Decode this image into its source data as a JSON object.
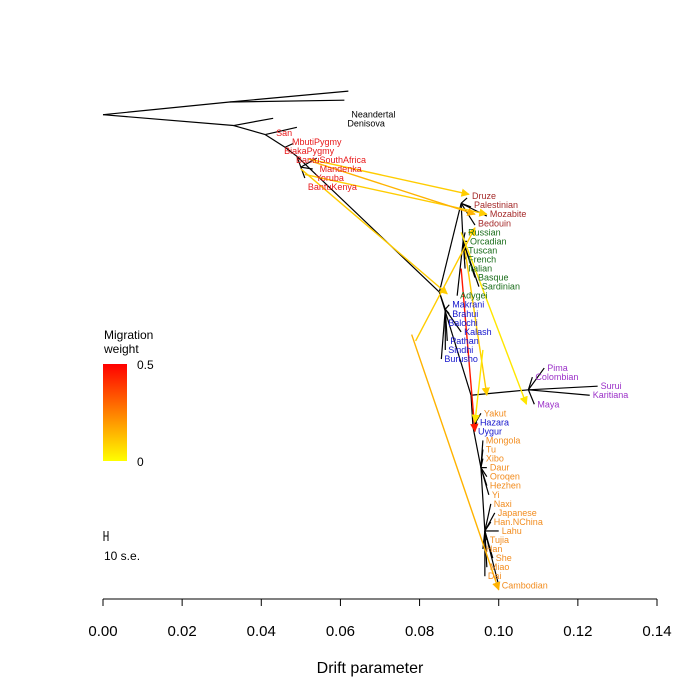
{
  "chart_data": {
    "type": "tree",
    "xlabel": "Drift parameter",
    "xlim": [
      0.0,
      0.14
    ],
    "x_ticks": [
      "0.00",
      "0.02",
      "0.04",
      "0.06",
      "0.08",
      "0.10",
      "0.12",
      "0.14"
    ],
    "legend": {
      "title_line1": "Migration",
      "title_line2": "weight",
      "max_label": "0.5",
      "min_label": "0",
      "gradient_top": "#ff0000",
      "gradient_bottom": "#ffff00"
    },
    "scale_bar_label": "10 s.e.",
    "group_colors": {
      "outgroup": "#000000",
      "africa": "#e8191b",
      "middle_east": "#a52a2a",
      "europe": "#1c6e1c",
      "central_south_asia": "#1414cc",
      "america": "#9b30c8",
      "east_asia": "#f28c1e"
    },
    "leaves": [
      {
        "name": "Neandertal",
        "group": "outgroup",
        "drift": 0.062,
        "order": 0
      },
      {
        "name": "Denisova",
        "group": "outgroup",
        "drift": 0.061,
        "order": 1
      },
      {
        "name": "San",
        "group": "africa",
        "drift": 0.043,
        "order": 2
      },
      {
        "name": "MbutiPygmy",
        "group": "africa",
        "drift": 0.047,
        "order": 3
      },
      {
        "name": "BiakaPygmy",
        "group": "africa",
        "drift": 0.045,
        "order": 4
      },
      {
        "name": "BantuSouthAfrica",
        "group": "africa",
        "drift": 0.048,
        "order": 5
      },
      {
        "name": "Mandenka",
        "group": "africa",
        "drift": 0.054,
        "order": 6
      },
      {
        "name": "Yoruba",
        "group": "africa",
        "drift": 0.053,
        "order": 7
      },
      {
        "name": "BantuKenya",
        "group": "africa",
        "drift": 0.051,
        "order": 8
      },
      {
        "name": "Druze",
        "group": "middle_east",
        "drift": 0.0925,
        "order": 9
      },
      {
        "name": "Palestinian",
        "group": "middle_east",
        "drift": 0.093,
        "order": 10
      },
      {
        "name": "Mozabite",
        "group": "middle_east",
        "drift": 0.097,
        "order": 11
      },
      {
        "name": "Bedouin",
        "group": "middle_east",
        "drift": 0.094,
        "order": 12
      },
      {
        "name": "Russian",
        "group": "europe",
        "drift": 0.0915,
        "order": 13
      },
      {
        "name": "Orcadian",
        "group": "europe",
        "drift": 0.092,
        "order": 14
      },
      {
        "name": "Tuscan",
        "group": "europe",
        "drift": 0.0915,
        "order": 15
      },
      {
        "name": "French",
        "group": "europe",
        "drift": 0.0915,
        "order": 16
      },
      {
        "name": "Italian",
        "group": "europe",
        "drift": 0.0915,
        "order": 17
      },
      {
        "name": "Basque",
        "group": "europe",
        "drift": 0.094,
        "order": 18
      },
      {
        "name": "Sardinian",
        "group": "europe",
        "drift": 0.095,
        "order": 19
      },
      {
        "name": "Adygei",
        "group": "europe",
        "drift": 0.0895,
        "order": 20
      },
      {
        "name": "Makrani",
        "group": "central_south_asia",
        "drift": 0.0875,
        "order": 21
      },
      {
        "name": "Brahui",
        "group": "central_south_asia",
        "drift": 0.0875,
        "order": 22
      },
      {
        "name": "Balochi",
        "group": "central_south_asia",
        "drift": 0.0865,
        "order": 23
      },
      {
        "name": "Kalash",
        "group": "central_south_asia",
        "drift": 0.0905,
        "order": 24
      },
      {
        "name": "Pathan",
        "group": "central_south_asia",
        "drift": 0.087,
        "order": 25
      },
      {
        "name": "Sindhi",
        "group": "central_south_asia",
        "drift": 0.0865,
        "order": 26
      },
      {
        "name": "Burusho",
        "group": "central_south_asia",
        "drift": 0.0855,
        "order": 27
      },
      {
        "name": "Pima",
        "group": "america",
        "drift": 0.1115,
        "order": 28
      },
      {
        "name": "Colombian",
        "group": "america",
        "drift": 0.1085,
        "order": 29
      },
      {
        "name": "Surui",
        "group": "america",
        "drift": 0.125,
        "order": 30
      },
      {
        "name": "Karitiana",
        "group": "america",
        "drift": 0.123,
        "order": 31
      },
      {
        "name": "Maya",
        "group": "america",
        "drift": 0.109,
        "order": 32
      },
      {
        "name": "Yakut",
        "group": "east_asia",
        "drift": 0.0955,
        "order": 33
      },
      {
        "name": "Hazara",
        "group": "central_south_asia",
        "drift": 0.0945,
        "order": 34
      },
      {
        "name": "Uygur",
        "group": "central_south_asia",
        "drift": 0.094,
        "order": 35
      },
      {
        "name": "Mongola",
        "group": "east_asia",
        "drift": 0.096,
        "order": 36
      },
      {
        "name": "Tu",
        "group": "east_asia",
        "drift": 0.096,
        "order": 37
      },
      {
        "name": "Xibo",
        "group": "east_asia",
        "drift": 0.096,
        "order": 38
      },
      {
        "name": "Daur",
        "group": "east_asia",
        "drift": 0.097,
        "order": 39
      },
      {
        "name": "Oroqen",
        "group": "east_asia",
        "drift": 0.097,
        "order": 40
      },
      {
        "name": "Hezhen",
        "group": "east_asia",
        "drift": 0.097,
        "order": 41
      },
      {
        "name": "Yi",
        "group": "east_asia",
        "drift": 0.0975,
        "order": 42
      },
      {
        "name": "Naxi",
        "group": "east_asia",
        "drift": 0.098,
        "order": 43
      },
      {
        "name": "Japanese",
        "group": "east_asia",
        "drift": 0.099,
        "order": 44
      },
      {
        "name": "Han.NChina",
        "group": "east_asia",
        "drift": 0.098,
        "order": 45
      },
      {
        "name": "Lahu",
        "group": "east_asia",
        "drift": 0.1,
        "order": 46
      },
      {
        "name": "Tujia",
        "group": "east_asia",
        "drift": 0.097,
        "order": 47
      },
      {
        "name": "Han",
        "group": "east_asia",
        "drift": 0.096,
        "order": 48
      },
      {
        "name": "She",
        "group": "east_asia",
        "drift": 0.0985,
        "order": 49
      },
      {
        "name": "Miao",
        "group": "east_asia",
        "drift": 0.097,
        "order": 50
      },
      {
        "name": "Dai",
        "group": "east_asia",
        "drift": 0.0965,
        "order": 51
      },
      {
        "name": "Cambodian",
        "group": "east_asia",
        "drift": 0.1,
        "order": 52
      }
    ],
    "tree_edges": [
      [
        0.0,
        0,
        0.032,
        -1.4
      ],
      [
        0.032,
        -1.4,
        0.062,
        -2.6
      ],
      [
        0.032,
        -1.4,
        0.061,
        -1.6
      ],
      [
        0.0,
        0,
        0.033,
        1.2
      ],
      [
        0.033,
        1.2,
        0.043,
        0.4
      ],
      [
        0.033,
        1.2,
        0.041,
        2.2
      ],
      [
        0.041,
        2.2,
        0.049,
        1.4
      ],
      [
        0.041,
        2.2,
        0.046,
        3.6
      ],
      [
        0.046,
        3.6,
        0.048,
        3.2
      ],
      [
        0.046,
        3.6,
        0.049,
        4.6
      ],
      [
        0.049,
        4.6,
        0.05,
        5.8
      ],
      [
        0.05,
        5.8,
        0.054,
        4.8
      ],
      [
        0.05,
        5.8,
        0.053,
        6.0
      ],
      [
        0.05,
        5.8,
        0.051,
        7.0
      ],
      [
        0.049,
        4.6,
        0.085,
        19.6
      ],
      [
        0.085,
        19.6,
        0.0905,
        9.8
      ],
      [
        0.0905,
        9.8,
        0.092,
        9.2
      ],
      [
        0.0905,
        9.8,
        0.093,
        10.2
      ],
      [
        0.0905,
        9.8,
        0.097,
        11.2
      ],
      [
        0.0905,
        9.8,
        0.094,
        12.2
      ],
      [
        0.0905,
        9.8,
        0.091,
        14.0
      ],
      [
        0.091,
        14.0,
        0.0915,
        13.0
      ],
      [
        0.091,
        14.0,
        0.092,
        14.0
      ],
      [
        0.091,
        14.0,
        0.0915,
        15.0
      ],
      [
        0.091,
        14.0,
        0.0915,
        16.0
      ],
      [
        0.091,
        14.0,
        0.0915,
        17.0
      ],
      [
        0.091,
        14.0,
        0.094,
        18.0
      ],
      [
        0.091,
        14.0,
        0.095,
        19.0
      ],
      [
        0.091,
        14.0,
        0.0895,
        20.0
      ],
      [
        0.085,
        19.6,
        0.0865,
        21.5
      ],
      [
        0.0865,
        21.5,
        0.0875,
        21.0
      ],
      [
        0.0865,
        21.5,
        0.0875,
        22.0
      ],
      [
        0.0865,
        21.5,
        0.0865,
        23.0
      ],
      [
        0.0865,
        21.5,
        0.0905,
        24.0
      ],
      [
        0.0865,
        21.5,
        0.087,
        25.0
      ],
      [
        0.0865,
        21.5,
        0.0865,
        26.0
      ],
      [
        0.0865,
        21.5,
        0.0855,
        27.0
      ],
      [
        0.085,
        19.6,
        0.093,
        31.0
      ],
      [
        0.093,
        31.0,
        0.1075,
        30.4
      ],
      [
        0.1075,
        30.4,
        0.1115,
        28.0
      ],
      [
        0.1075,
        30.4,
        0.1085,
        29.0
      ],
      [
        0.1075,
        30.4,
        0.125,
        30.0
      ],
      [
        0.1075,
        30.4,
        0.123,
        31.0
      ],
      [
        0.1075,
        30.4,
        0.109,
        32.0
      ],
      [
        0.093,
        31.0,
        0.0935,
        34.5
      ],
      [
        0.0935,
        34.5,
        0.0955,
        33.0
      ],
      [
        0.0935,
        34.5,
        0.0945,
        34.0
      ],
      [
        0.0935,
        34.5,
        0.094,
        35.0
      ],
      [
        0.0935,
        34.5,
        0.0955,
        39.0
      ],
      [
        0.0955,
        39.0,
        0.096,
        36.0
      ],
      [
        0.0955,
        39.0,
        0.096,
        37.0
      ],
      [
        0.0955,
        39.0,
        0.096,
        38.0
      ],
      [
        0.0955,
        39.0,
        0.097,
        39.0
      ],
      [
        0.0955,
        39.0,
        0.097,
        40.0
      ],
      [
        0.0955,
        39.0,
        0.097,
        41.0
      ],
      [
        0.0955,
        39.0,
        0.0975,
        42.0
      ],
      [
        0.0955,
        39.0,
        0.0965,
        46.0
      ],
      [
        0.0965,
        46.0,
        0.098,
        43.0
      ],
      [
        0.0965,
        46.0,
        0.099,
        44.0
      ],
      [
        0.0965,
        46.0,
        0.098,
        45.0
      ],
      [
        0.0965,
        46.0,
        0.1,
        46.0
      ],
      [
        0.0965,
        46.0,
        0.097,
        47.0
      ],
      [
        0.0965,
        46.0,
        0.096,
        48.0
      ],
      [
        0.0965,
        46.0,
        0.0985,
        49.0
      ],
      [
        0.0965,
        46.0,
        0.097,
        50.0
      ],
      [
        0.0965,
        46.0,
        0.0965,
        51.0
      ],
      [
        0.0965,
        46.0,
        0.1,
        52.0
      ]
    ],
    "migrations": [
      {
        "from": [
          0.052,
          4.9
        ],
        "to": [
          0.0925,
          8.8
        ],
        "weight": 0.1
      },
      {
        "from": [
          0.051,
          6.6
        ],
        "to": [
          0.097,
          11.0
        ],
        "weight": 0.1
      },
      {
        "from": [
          0.053,
          5.2
        ],
        "to": [
          0.094,
          11.0
        ],
        "weight": 0.15
      },
      {
        "from": [
          0.05,
          6.0
        ],
        "to": [
          0.087,
          19.8
        ],
        "weight": 0.1
      },
      {
        "from": [
          0.0905,
          13.0
        ],
        "to": [
          0.107,
          32.0
        ],
        "weight": 0.05
      },
      {
        "from": [
          0.0915,
          15.0
        ],
        "to": [
          0.097,
          31.0
        ],
        "weight": 0.1
      },
      {
        "from": [
          0.0905,
          17.0
        ],
        "to": [
          0.094,
          35.0
        ],
        "weight": 0.45
      },
      {
        "from": [
          0.078,
          24.3
        ],
        "to": [
          0.1,
          52.5
        ],
        "weight": 0.15
      },
      {
        "from": [
          0.079,
          25.0
        ],
        "to": [
          0.094,
          12.5
        ],
        "weight": 0.1
      },
      {
        "from": [
          0.096,
          26.0
        ],
        "to": [
          0.094,
          34.0
        ],
        "weight": 0.05
      }
    ]
  }
}
